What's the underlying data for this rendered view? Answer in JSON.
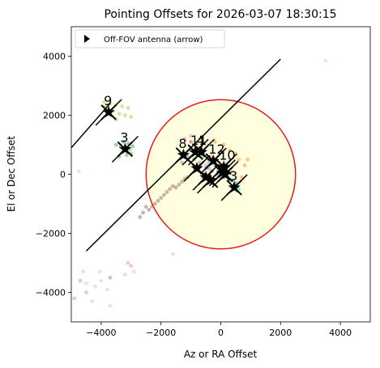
{
  "chart_data": {
    "type": "scatter",
    "title": "Pointing Offsets for 2026-03-07 18:30:15",
    "xlabel": "Az or RA Offset",
    "ylabel": "El or Dec Offset",
    "xlim": [
      -5000,
      5000
    ],
    "ylim": [
      -5000,
      5000
    ],
    "xticks": [
      -4000,
      -2000,
      0,
      2000,
      4000
    ],
    "yticks": [
      -4000,
      -2000,
      0,
      2000,
      4000
    ],
    "xtick_labels": [
      "−4000",
      "−2000",
      "0",
      "2000",
      "4000"
    ],
    "ytick_labels": [
      "−4000",
      "−2000",
      "0",
      "2000",
      "4000"
    ],
    "grid": false,
    "legend": {
      "placement": "top-left",
      "entries": [
        {
          "label": "Off-FOV antenna (arrow)",
          "marker": "triangle-right",
          "color": "#000000"
        }
      ]
    },
    "fov_circle": {
      "center": [
        0,
        0
      ],
      "radius": 2500,
      "edge_color": "#e31a1c",
      "fill_color": "#ffffe0"
    },
    "lines": [
      {
        "x": [
          -5000,
          -3700
        ],
        "y": [
          900,
          2400
        ],
        "color": "#000000"
      },
      {
        "x": [
          -4500,
          2000
        ],
        "y": [
          -2600,
          3900
        ],
        "color": "#000000"
      }
    ],
    "markers": [
      {
        "label": "9",
        "x": -3750,
        "y": 2100
      },
      {
        "label": "3",
        "x": -3200,
        "y": 850
      },
      {
        "label": "8",
        "x": -1250,
        "y": 650
      },
      {
        "label": "11",
        "x": -850,
        "y": 750
      },
      {
        "label": "4",
        "x": -650,
        "y": 750
      },
      {
        "label": "12",
        "x": -250,
        "y": 450
      },
      {
        "label": "10",
        "x": 100,
        "y": 250
      },
      {
        "label": "",
        "x": -800,
        "y": 200
      },
      {
        "label": "",
        "x": -500,
        "y": -100
      },
      {
        "label": "",
        "x": -350,
        "y": -200
      },
      {
        "label": "",
        "x": 50,
        "y": 50
      },
      {
        "label": "",
        "x": 150,
        "y": 0
      },
      {
        "label": "3",
        "x": 450,
        "y": -450
      }
    ],
    "marker_color": "#000000",
    "scatter_series": [
      {
        "color": "#bcbd22",
        "points": [
          [
            -3900,
            2450
          ],
          [
            -3700,
            2400
          ],
          [
            -3500,
            2350
          ],
          [
            -3300,
            2300
          ],
          [
            -3100,
            2250
          ],
          [
            -3600,
            2150
          ],
          [
            -3400,
            2050
          ],
          [
            -3200,
            2000
          ],
          [
            -3000,
            1950
          ],
          [
            -3500,
            1850
          ],
          [
            -3850,
            2300
          ]
        ]
      },
      {
        "color": "#2ca02c",
        "points": [
          [
            -3500,
            1000
          ],
          [
            -3350,
            950
          ],
          [
            -3200,
            900
          ],
          [
            -3050,
            850
          ],
          [
            -3300,
            750
          ],
          [
            -3150,
            650
          ],
          [
            -3000,
            700
          ],
          [
            -3250,
            1100
          ],
          [
            -2950,
            950
          ],
          [
            -3400,
            600
          ],
          [
            -3100,
            1050
          ]
        ]
      },
      {
        "color": "#8c564b",
        "points": [
          [
            -2500,
            -1100
          ],
          [
            -2400,
            -1200
          ],
          [
            -2300,
            -1100
          ],
          [
            -2200,
            -1000
          ],
          [
            -2100,
            -900
          ],
          [
            -2000,
            -800
          ],
          [
            -1900,
            -700
          ],
          [
            -1800,
            -600
          ],
          [
            -1700,
            -500
          ],
          [
            -1600,
            -400
          ],
          [
            -1500,
            -450
          ],
          [
            -1400,
            -350
          ],
          [
            -1300,
            -250
          ],
          [
            -1200,
            -150
          ],
          [
            -1100,
            -100
          ],
          [
            -2600,
            -1300
          ],
          [
            -2700,
            -1450
          ]
        ]
      },
      {
        "color": "#1f77b4",
        "points": [
          [
            -700,
            300
          ],
          [
            -500,
            200
          ],
          [
            -300,
            100
          ],
          [
            -100,
            0
          ],
          [
            100,
            -100
          ],
          [
            300,
            -200
          ],
          [
            500,
            -300
          ],
          [
            -900,
            500
          ],
          [
            -600,
            -100
          ],
          [
            400,
            -400
          ]
        ]
      },
      {
        "color": "#17becf",
        "points": [
          [
            -800,
            700
          ],
          [
            -600,
            600
          ],
          [
            -400,
            400
          ],
          [
            -200,
            300
          ],
          [
            0,
            200
          ],
          [
            200,
            0
          ],
          [
            400,
            -200
          ],
          [
            600,
            -500
          ],
          [
            -1000,
            800
          ]
        ]
      },
      {
        "color": "#ff7f0e",
        "points": [
          [
            300,
            800
          ],
          [
            500,
            700
          ],
          [
            600,
            500
          ],
          [
            800,
            300
          ],
          [
            -200,
            1100
          ],
          [
            100,
            1000
          ],
          [
            700,
            -100
          ],
          [
            900,
            500
          ]
        ]
      },
      {
        "color": "#d62728",
        "points": [
          [
            -1000,
            1100
          ],
          [
            -800,
            900
          ],
          [
            -600,
            700
          ],
          [
            -400,
            500
          ],
          [
            -200,
            400
          ],
          [
            -900,
            300
          ]
        ]
      },
      {
        "color": "#e377c2",
        "points": [
          [
            -1200,
            1200
          ],
          [
            -1000,
            1300
          ],
          [
            -700,
            900
          ],
          [
            -300,
            600
          ],
          [
            -500,
            300
          ],
          [
            -3100,
            -3000
          ],
          [
            -3000,
            -3100
          ],
          [
            -4700,
            -3600
          ],
          [
            -4500,
            -4000
          ],
          [
            -4900,
            -4200
          ]
        ]
      },
      {
        "color": "#9467bd",
        "points": [
          [
            -1100,
            600
          ],
          [
            -700,
            400
          ],
          [
            -400,
            200
          ],
          [
            -1300,
            400
          ],
          [
            -3700,
            -3500
          ]
        ]
      },
      {
        "color": "#aec7e8",
        "points": [
          [
            -4500,
            -3700
          ],
          [
            -4200,
            -3800
          ],
          [
            -4000,
            -3600
          ],
          [
            -3800,
            -3900
          ],
          [
            -4300,
            -4300
          ],
          [
            -4050,
            -3300
          ]
        ]
      },
      {
        "color": "#98df8a",
        "points": [
          [
            -3700,
            -4450
          ],
          [
            -3200,
            -3400
          ],
          [
            -1600,
            -2700
          ],
          [
            -4600,
            -3300
          ]
        ]
      },
      {
        "color": "#ffbb78",
        "points": [
          [
            3500,
            3850
          ],
          [
            -2900,
            -3300
          ],
          [
            -4750,
            100
          ]
        ]
      }
    ]
  }
}
